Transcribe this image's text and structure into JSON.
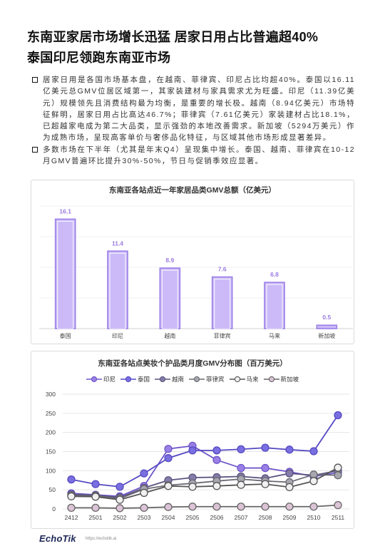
{
  "title": {
    "line1": "东南亚家居市场增长迅猛 居家日用占比普遍超40%",
    "line2": "泰国印尼领跑东南亚市场"
  },
  "bullets": [
    "居家日用是各国市场基本盘，在越南、菲律宾、印尼占比均超40%。泰国以16.11亿美元总GMV位居区域第一，其家装建材与家具需求尤为旺盛。印尼（11.39亿美元）规模领先且消费结构最为均衡，是重要的增长极。越南（8.94亿美元）市场特征鲜明，居家日用占比高达46.7%；菲律宾（7.61亿美元）家装建材占比18.1%，已超越家电成为第二大品类，显示强劲的本地改善需求。新加坡（5294万美元）作为成熟市场，呈现高客单价与奢侈品化特征，与区域其他市场形成显著差异。",
    "多数市场在下半年（尤其是年末Q4）呈现集中增长。泰国、越南、菲律宾在10-12月GMV普遍环比提升30%-50%，节日与促销季效应显著。"
  ],
  "chart_data": [
    {
      "type": "bar",
      "title": "东南亚各站点近一年家居品类GMV总额（亿美元）",
      "categories": [
        "泰国",
        "印尼",
        "越南",
        "菲律宾",
        "马来",
        "新加坡"
      ],
      "values": [
        16.1,
        11.4,
        8.9,
        7.6,
        6.8,
        0.5
      ],
      "grid": true,
      "colors": {
        "fill": "#cbbaf7",
        "outline": "#9b7fe8",
        "label": "#9b7be0"
      }
    },
    {
      "type": "line",
      "title": "东南亚各站点美妆个护品类月度GMV分布图（百万美元）",
      "x": [
        "2412",
        "2501",
        "2502",
        "2503",
        "2504",
        "2505",
        "2506",
        "2507",
        "2508",
        "2509",
        "2510",
        "2511"
      ],
      "series": [
        {
          "name": "印尼",
          "values": [
            41,
            37,
            33,
            60,
            157,
            165,
            128,
            107,
            107,
            97,
            85,
            95
          ],
          "color": "#9a80e6",
          "line": "#6f56c9"
        },
        {
          "name": "泰国",
          "values": [
            77,
            65,
            58,
            93,
            133,
            153,
            153,
            156,
            160,
            155,
            151,
            245
          ],
          "color": "#7a6fe0",
          "line": "#5549c2"
        },
        {
          "name": "越南",
          "values": [
            38,
            36,
            30,
            55,
            75,
            82,
            83,
            85,
            80,
            93,
            88,
            100
          ],
          "color": "#857ca8",
          "line": "#5c5480"
        },
        {
          "name": "菲律宾",
          "values": [
            35,
            34,
            27,
            52,
            62,
            67,
            73,
            78,
            73,
            70,
            90,
            88
          ],
          "color": "#a7a7b0",
          "line": "#6b6b74"
        },
        {
          "name": "马来",
          "values": [
            33,
            32,
            24,
            42,
            60,
            58,
            60,
            63,
            65,
            57,
            73,
            108
          ],
          "color": "#f0f0f0",
          "line": "#555555"
        },
        {
          "name": "新加坡",
          "values": [
            3,
            3,
            2,
            3,
            5,
            6,
            6,
            6,
            6,
            6,
            6,
            10
          ],
          "color": "#dcc3d6",
          "line": "#666666"
        }
      ],
      "ylim": [
        0,
        300
      ],
      "yticks": [
        0,
        50,
        100,
        150,
        200,
        250,
        300
      ],
      "legend": "top-center",
      "grid": true
    }
  ],
  "footer": {
    "logo": "EchoTik",
    "url": "https://echotik.ai"
  }
}
